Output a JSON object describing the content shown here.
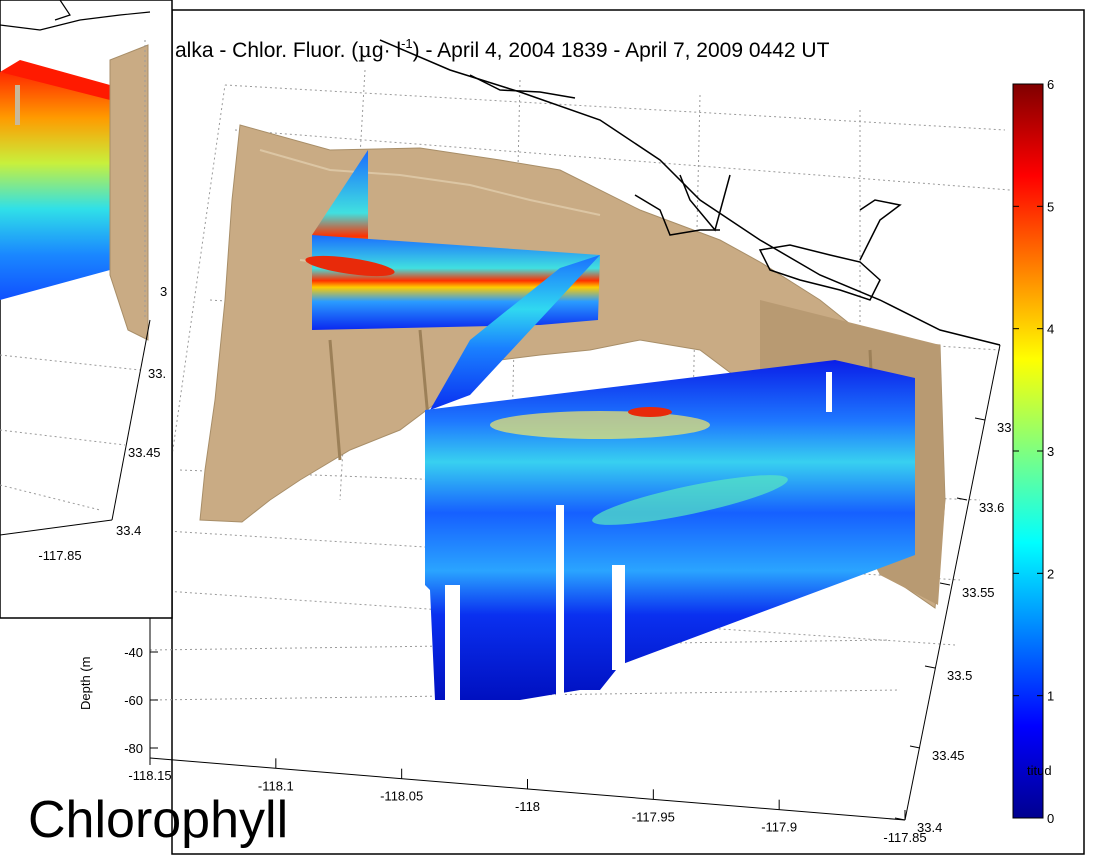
{
  "caption": "Chlorophyll",
  "chart_data": {
    "type": "3d-section",
    "title": "alka - Chlor. Fluor. (µg· l⁻¹) - April 4, 2004 1839 - April 7, 2009 0442 UT",
    "title_parts": [
      "alka - Chlor. Fluor. (",
      "µ",
      "g· l",
      "-1",
      ") - April 4, 2004 1839 - April 7, 2009 0442 UT"
    ],
    "zlabel": "Depth (m",
    "ylabel_partial": "titud",
    "colormap": "jet",
    "colors": {
      "bathymetry": "#c8aa82",
      "coast": "#000000",
      "grid": "#999999"
    },
    "colorbar": {
      "min": 0,
      "max": 6,
      "ticks": [
        "0",
        "1",
        "2",
        "3",
        "4",
        "5",
        "6"
      ]
    },
    "depth_ticks": [
      "-40",
      "-60",
      "-80"
    ],
    "lon_ticks": [
      "-118.15",
      "-118.1",
      "-118.05",
      "-118",
      "-117.95",
      "-117.9",
      "-117.85"
    ],
    "lat_ticks": [
      "33.4",
      "33.45",
      "33.5",
      "33.55",
      "33.6",
      "33"
    ],
    "inset": {
      "lon_ticks": [
        "-117.85"
      ],
      "lat_ticks": [
        "33.4",
        "33.45",
        "33.",
        "3"
      ]
    }
  }
}
